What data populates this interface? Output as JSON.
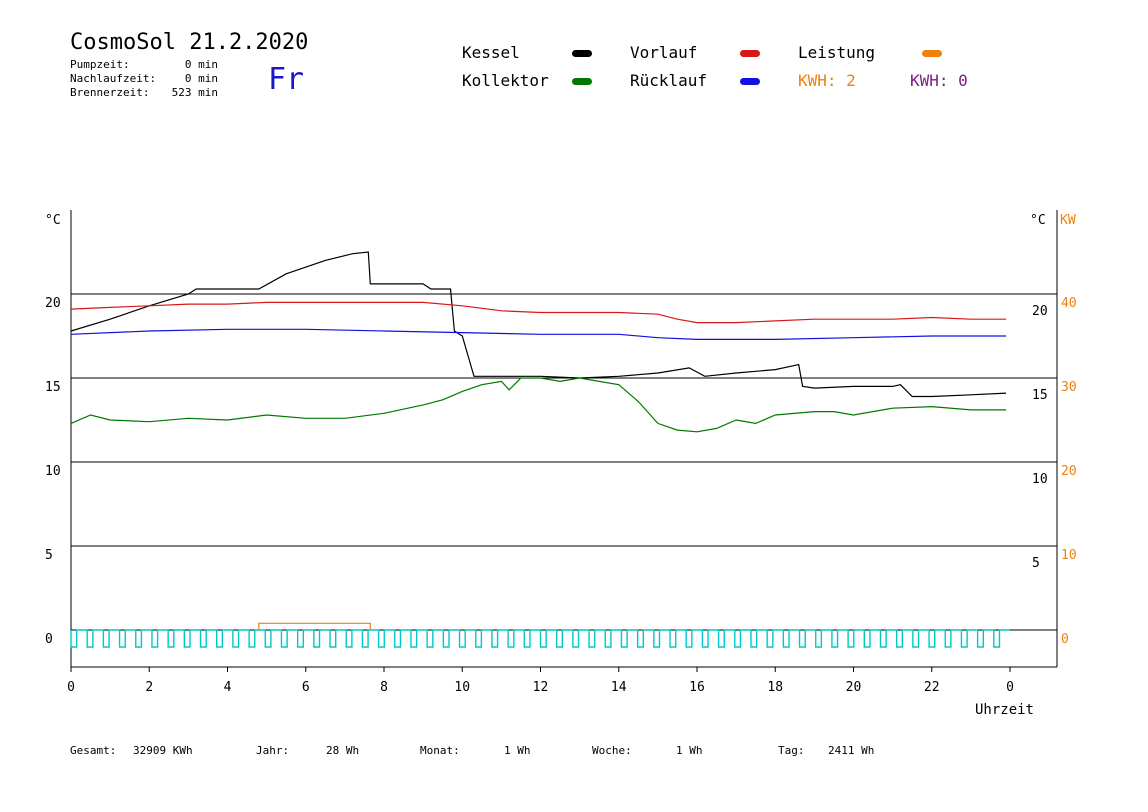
{
  "header": {
    "title": "CosmoSol 21.2.2020",
    "day": "Fr",
    "stats": [
      {
        "label": "Pumpzeit:",
        "value": "0 min"
      },
      {
        "label": "Nachlaufzeit:",
        "value": "0 min"
      },
      {
        "label": "Brennerzeit:",
        "value": "523 min"
      }
    ]
  },
  "legend": {
    "kessel": "Kessel",
    "kollektor": "Kollektor",
    "vorlauf": "Vorlauf",
    "ruecklauf": "Rücklauf",
    "leistung": "Leistung",
    "kwh1": "KWH: 2",
    "kwh2": "KWH: 0"
  },
  "colors": {
    "kessel": "#000000",
    "kollektor": "#007800",
    "vorlauf": "#d81818",
    "ruecklauf": "#1010e0",
    "leistung": "#f08010",
    "kwh2": "#802080",
    "pump": "#00c8c8",
    "grid": "#000000"
  },
  "footer": [
    {
      "label": "Gesamt:",
      "value": "32909 KWh"
    },
    {
      "label": "Jahr:",
      "value": "28 Wh"
    },
    {
      "label": "Monat:",
      "value": "1 Wh"
    },
    {
      "label": "Woche:",
      "value": "1 Wh"
    },
    {
      "label": "Tag:",
      "value": "2411 Wh"
    }
  ],
  "chart_data": {
    "type": "line",
    "xlabel": "Uhrzeit",
    "ylabel_left": "°C",
    "ylabel_right_1": "°C",
    "ylabel_right_2": "KW",
    "xlim": [
      0,
      24
    ],
    "ylim": [
      -2,
      25
    ],
    "grid": true,
    "x_tick_labels": [
      "0",
      "2",
      "4",
      "6",
      "8",
      "10",
      "12",
      "14",
      "16",
      "18",
      "20",
      "22",
      "0"
    ],
    "y_left_ticks": [
      0,
      5,
      10,
      15,
      20
    ],
    "y_right_ticks": [
      5,
      10,
      15,
      20
    ],
    "kw_ticks": [
      0,
      10,
      20,
      30,
      40
    ],
    "series": [
      {
        "name": "Kessel",
        "key": "kessel",
        "x": [
          0,
          1,
          2,
          3,
          3.2,
          4.8,
          5.5,
          6.5,
          7.2,
          7.6,
          7.65,
          9.0,
          9.2,
          9.7,
          9.8,
          10.0,
          10.3,
          11,
          12,
          13,
          14,
          15,
          15.8,
          16.2,
          17,
          18,
          18.6,
          18.7,
          19,
          20,
          21,
          21.2,
          21.5,
          22,
          23,
          23.9
        ],
        "y": [
          17.8,
          18.5,
          19.3,
          20.0,
          20.3,
          20.3,
          21.2,
          22.0,
          22.4,
          22.5,
          20.6,
          20.6,
          20.3,
          20.3,
          17.8,
          17.5,
          15.1,
          15.1,
          15.1,
          15.0,
          15.1,
          15.3,
          15.6,
          15.1,
          15.3,
          15.5,
          15.8,
          14.5,
          14.4,
          14.5,
          14.5,
          14.6,
          13.9,
          13.9,
          14.0,
          14.1
        ]
      },
      {
        "name": "Vorlauf",
        "key": "vorlauf",
        "x": [
          0,
          1,
          2,
          3,
          4,
          5,
          6,
          7,
          8,
          9,
          10,
          11,
          12,
          13,
          14,
          15,
          15.5,
          16,
          17,
          18,
          19,
          20,
          21,
          22,
          23,
          23.9
        ],
        "y": [
          19.1,
          19.2,
          19.3,
          19.4,
          19.4,
          19.5,
          19.5,
          19.5,
          19.5,
          19.5,
          19.3,
          19.0,
          18.9,
          18.9,
          18.9,
          18.8,
          18.5,
          18.3,
          18.3,
          18.4,
          18.5,
          18.5,
          18.5,
          18.6,
          18.5,
          18.5
        ]
      },
      {
        "name": "Rücklauf",
        "key": "ruecklauf",
        "x": [
          0,
          2,
          4,
          6,
          8,
          10,
          12,
          14,
          15,
          16,
          17,
          18,
          20,
          22,
          23.9
        ],
        "y": [
          17.6,
          17.8,
          17.9,
          17.9,
          17.8,
          17.7,
          17.6,
          17.6,
          17.4,
          17.3,
          17.3,
          17.3,
          17.4,
          17.5,
          17.5
        ]
      },
      {
        "name": "Kollektor",
        "key": "kollektor",
        "x": [
          0,
          0.5,
          1,
          2,
          3,
          4,
          5,
          6,
          7,
          8,
          9,
          9.5,
          10,
          10.5,
          11,
          11.2,
          11.5,
          12,
          12.5,
          13,
          13.5,
          14,
          14.5,
          15,
          15.5,
          16,
          16.5,
          17,
          17.5,
          18,
          19,
          19.5,
          20,
          21,
          22,
          23,
          23.9
        ],
        "y": [
          12.3,
          12.8,
          12.5,
          12.4,
          12.6,
          12.5,
          12.8,
          12.6,
          12.6,
          12.9,
          13.4,
          13.7,
          14.2,
          14.6,
          14.8,
          14.3,
          15.0,
          15.0,
          14.8,
          15.0,
          14.8,
          14.6,
          13.6,
          12.3,
          11.9,
          11.8,
          12.0,
          12.5,
          12.3,
          12.8,
          13.0,
          13.0,
          12.8,
          13.2,
          13.3,
          13.1,
          13.1
        ]
      },
      {
        "name": "Leistung",
        "key": "leistung",
        "x": [
          4.8,
          4.8,
          7.65,
          7.65
        ],
        "y": [
          0,
          0.4,
          0.4,
          0
        ]
      }
    ],
    "pump_pulses_count": 58
  }
}
